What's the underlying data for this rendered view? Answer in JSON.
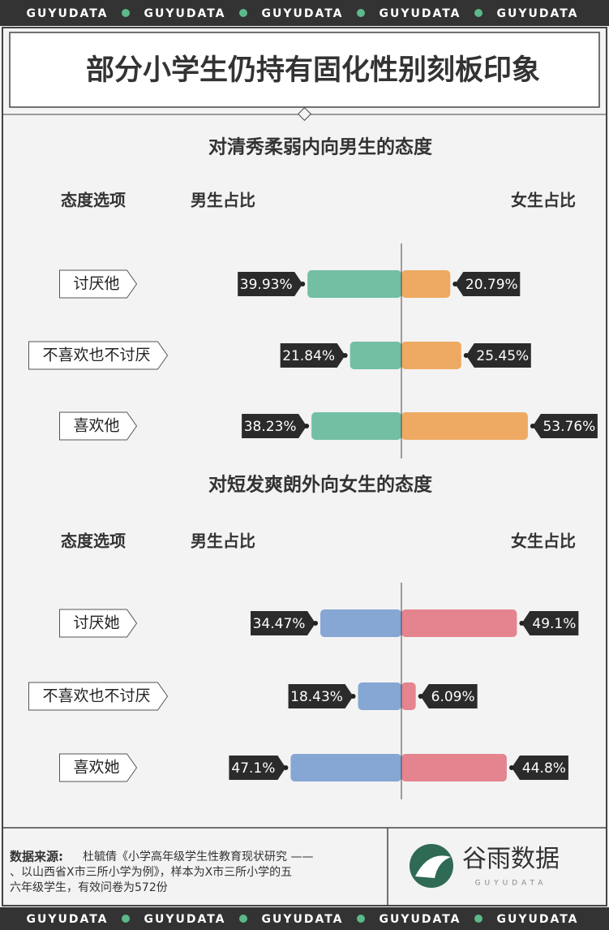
{
  "banner": "GUYUDATA",
  "title": "部分小学生仍持有固化性别刻板印象",
  "chart_data": [
    {
      "type": "butterfly",
      "title": "对清秀柔弱内向男生的态度",
      "category_header": "态度选项",
      "categories": [
        "讨厌他",
        "不喜欢也不讨厌",
        "喜欢他"
      ],
      "series": [
        {
          "name": "男生占比",
          "color": "#72bfa3",
          "values": [
            39.93,
            21.84,
            38.23
          ],
          "value_labels": [
            "39.93%",
            "21.84%",
            "38.23%"
          ]
        },
        {
          "name": "女生占比",
          "color": "#eeaa62",
          "values": [
            20.79,
            25.45,
            53.76
          ],
          "value_labels": [
            "20.79%",
            "25.45%",
            "53.76%"
          ]
        }
      ]
    },
    {
      "type": "butterfly",
      "title": "对短发爽朗外向女生的态度",
      "category_header": "态度选项",
      "categories": [
        "讨厌她",
        "不喜欢也不讨厌",
        "喜欢她"
      ],
      "series": [
        {
          "name": "男生占比",
          "color": "#86a6d4",
          "values": [
            34.47,
            18.43,
            47.1
          ],
          "value_labels": [
            "34.47%",
            "18.43%",
            "47.1%"
          ]
        },
        {
          "name": "女生占比",
          "color": "#e4848f",
          "values": [
            49.1,
            6.09,
            44.8
          ],
          "value_labels": [
            "49.1%",
            "6.09%",
            "44.8%"
          ]
        }
      ]
    }
  ],
  "source": {
    "label": "数据来源:",
    "lines": [
      "杜毓倩《小学高年级学生性教育现状研究 ——",
      "、以山西省X市三所小学为例》，样本为X市三所小学的五",
      "六年级学生，有效问卷为572份"
    ]
  },
  "logo": {
    "name": "谷雨数据",
    "sub": "GUYUDATA"
  }
}
